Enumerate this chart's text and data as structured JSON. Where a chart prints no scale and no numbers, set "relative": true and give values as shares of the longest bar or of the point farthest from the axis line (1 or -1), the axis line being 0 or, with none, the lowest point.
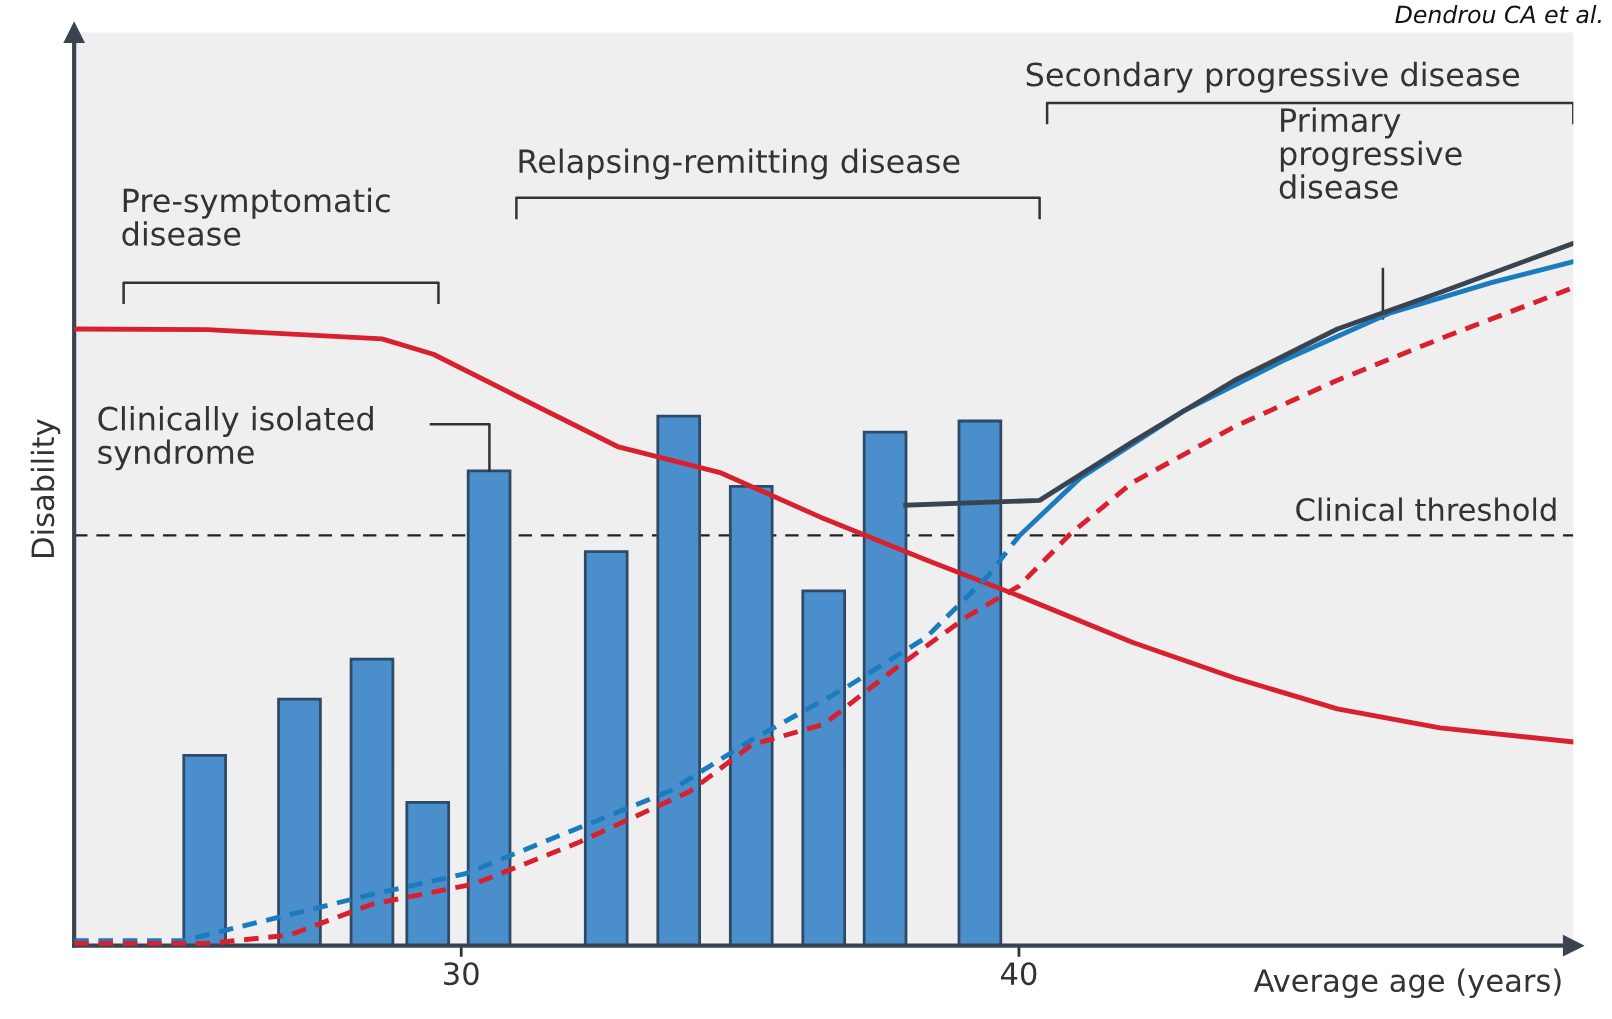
{
  "chart_data": {
    "type": "bar",
    "relative": true,
    "xlabel": "Average age (years)",
    "ylabel": "Disability",
    "xlim": [
      23.06,
      49.94
    ],
    "xticks": [
      30,
      40
    ],
    "annotations": [
      "Pre-symptomatic\ndisease",
      "Relapsing-remitting disease",
      "Secondary progressive disease",
      "Primary\nprogressive\ndisease",
      "Clinically isolated\nsyndrome",
      "Dendrou CA et al."
    ],
    "ref_lines": [
      {
        "axis": "y",
        "value": 0.584,
        "label": "Clinical threshold",
        "color": "#222222",
        "line_style": "dashed"
      }
    ],
    "series": [
      {
        "color": "#4a8fcc",
        "x": [
          25.4,
          27.1,
          28.4,
          29.4,
          30.5,
          32.6,
          33.9,
          35.2,
          36.5,
          37.6,
          39.3
        ],
        "values": [
          0.271,
          0.351,
          0.408,
          0.204,
          0.676,
          0.561,
          0.754,
          0.654,
          0.505,
          0.731,
          0.747
        ]
      },
      {
        "type": "line",
        "color": "#d8202e",
        "line_style": "solid",
        "x": [
          23.06,
          25.45,
          28.58,
          29.5,
          30.98,
          32.82,
          34.66,
          36.5,
          38.34,
          40.0,
          42.03,
          43.87,
          45.71,
          47.55,
          49.94
        ],
        "values": [
          0.878,
          0.877,
          0.864,
          0.842,
          0.783,
          0.71,
          0.673,
          0.608,
          0.549,
          0.498,
          0.432,
          0.381,
          0.337,
          0.31,
          0.29
        ]
      },
      {
        "type": "line",
        "color": "#1a7bbf",
        "line_style": "dashed",
        "x": [
          23.06,
          25.0,
          26.92,
          28.4,
          30.06,
          31.9,
          33.74,
          35.21,
          36.87,
          38.34,
          39.45,
          40.0
        ],
        "values": [
          0.007,
          0.007,
          0.044,
          0.073,
          0.102,
          0.161,
          0.22,
          0.293,
          0.366,
          0.439,
          0.527,
          0.583
        ]
      },
      {
        "type": "line",
        "color": "#1a7bbf",
        "line_style": "solid",
        "x": [
          40.0,
          41.1,
          42.95,
          44.79,
          46.63,
          48.47,
          49.94
        ],
        "values": [
          0.583,
          0.666,
          0.761,
          0.835,
          0.9,
          0.944,
          0.974
        ]
      },
      {
        "type": "line",
        "color": "#d8202e",
        "line_style": "dashed",
        "x": [
          23.06,
          25.45,
          26.92,
          28.4,
          30.24,
          32.08,
          34.11,
          35.21,
          36.5,
          37.79,
          39.08,
          40.0,
          40.92,
          42.03,
          43.87,
          45.71,
          47.55,
          49.94
        ],
        "values": [
          0.003,
          0.003,
          0.015,
          0.059,
          0.088,
          0.146,
          0.22,
          0.286,
          0.315,
          0.395,
          0.469,
          0.512,
          0.586,
          0.659,
          0.739,
          0.805,
          0.864,
          0.937
        ]
      },
      {
        "type": "line",
        "color": "#3a4450",
        "line_style": "solid",
        "x": [
          37.97,
          40.37,
          42.03,
          43.87,
          45.71,
          47.55,
          49.94
        ],
        "values": [
          0.627,
          0.634,
          0.717,
          0.805,
          0.878,
          0.93,
          1.0
        ]
      }
    ]
  }
}
